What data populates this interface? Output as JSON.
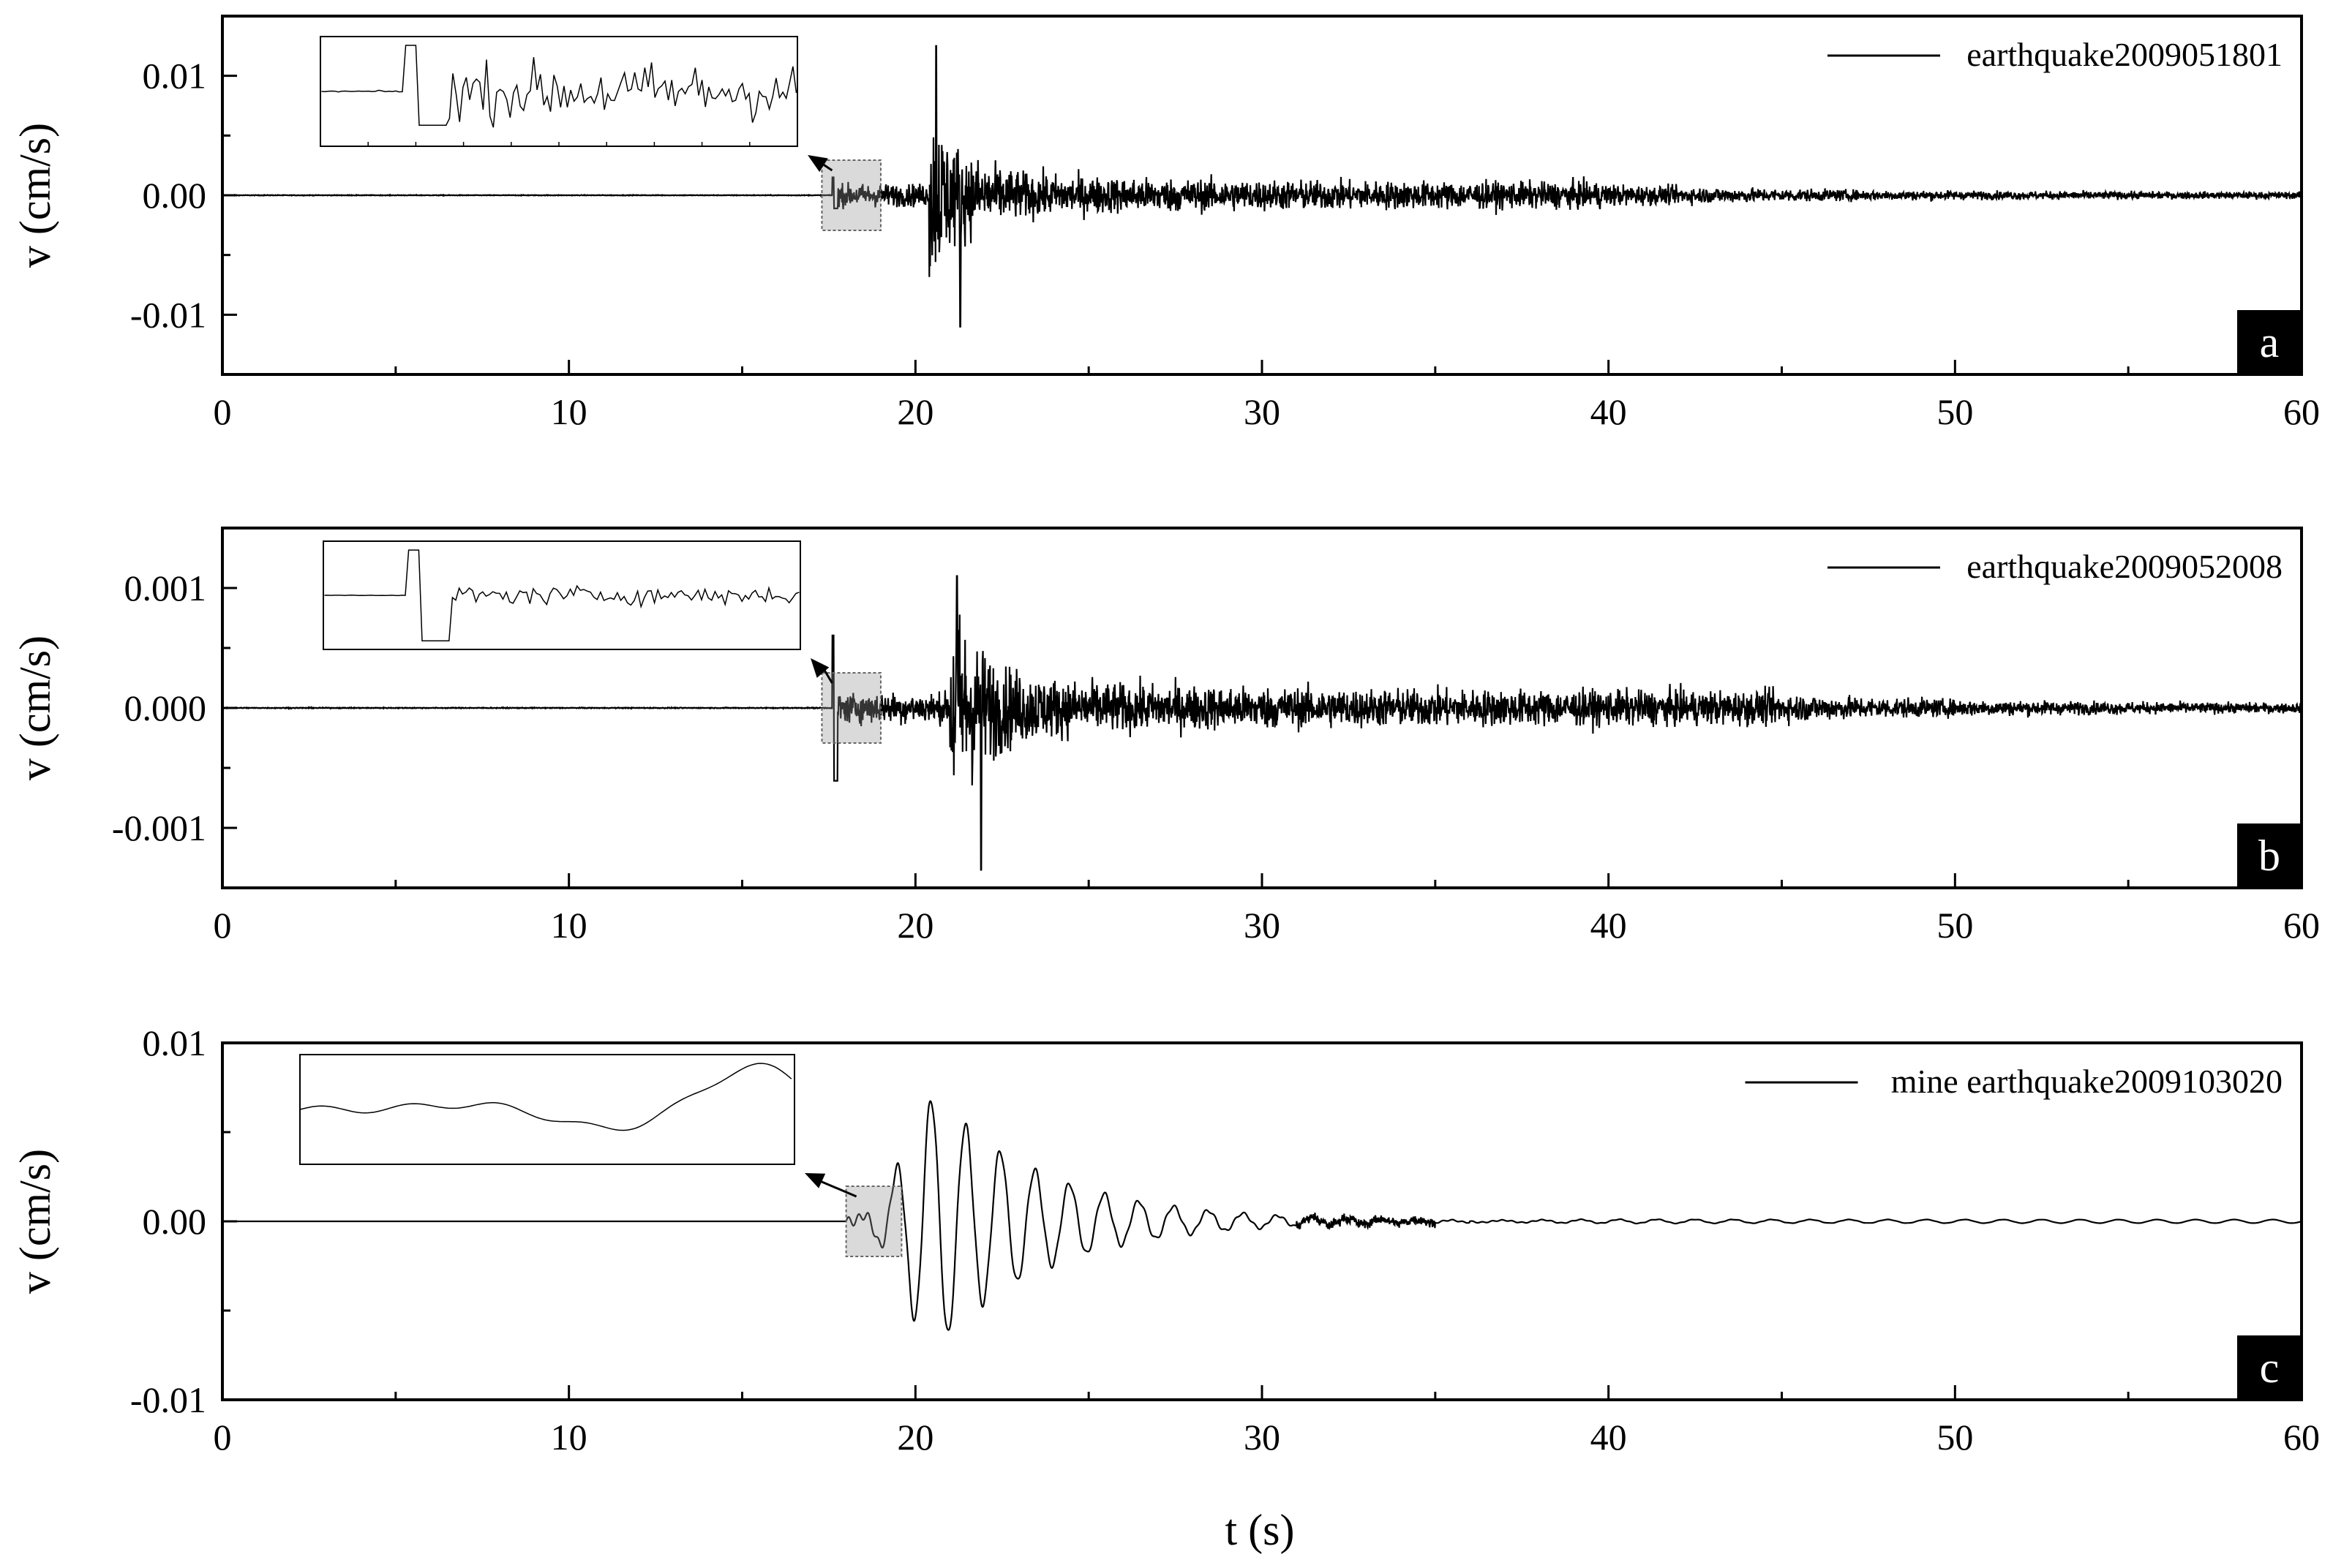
{
  "chart_data": [
    {
      "type": "line",
      "panel_label": "a",
      "legend": "earthquake2009051801",
      "xlabel": "t (s)",
      "ylabel": "v (cm/s)",
      "xlim": [
        0,
        60
      ],
      "ylim": [
        -0.015,
        0.015
      ],
      "x_ticks": [
        "0",
        "10",
        "20",
        "30",
        "40",
        "50",
        "60"
      ],
      "y_ticks": [
        {
          "value": 0.01,
          "label": "0.01"
        },
        {
          "value": 0.0,
          "label": "0.00"
        },
        {
          "value": -0.01,
          "label": "-0.01"
        }
      ],
      "series": [
        {
          "style": "seismic",
          "noise_onset_s": 17.6,
          "noise_amplitude": 0.0009,
          "p_arrival_s": 17.6,
          "s_arrival_s": 20.4,
          "peak_positive": 0.0125,
          "peak_negative": -0.011,
          "decay_end_s": 40
        }
      ],
      "inset": {
        "zoom_window_s": [
          17.3,
          19.0
        ],
        "shown": true
      }
    },
    {
      "type": "line",
      "panel_label": "b",
      "legend": "earthquake2009052008",
      "xlabel": "t (s)",
      "ylabel": "v (cm/s)",
      "xlim": [
        0,
        60
      ],
      "ylim": [
        -0.0015,
        0.0015
      ],
      "x_ticks": [
        "0",
        "10",
        "20",
        "30",
        "40",
        "50",
        "60"
      ],
      "y_ticks": [
        {
          "value": 0.001,
          "label": "0.001"
        },
        {
          "value": 0.0,
          "label": "0.000"
        },
        {
          "value": -0.001,
          "label": "-0.001"
        }
      ],
      "series": [
        {
          "style": "seismic",
          "noise_onset_s": 17.6,
          "noise_amplitude": 0.00012,
          "p_arrival_s": 17.6,
          "s_arrival_s": 21.0,
          "peak_positive": 0.0011,
          "peak_negative": -0.00135,
          "decay_end_s": 45
        }
      ],
      "inset": {
        "zoom_window_s": [
          17.3,
          19.0
        ],
        "shown": true
      }
    },
    {
      "type": "line",
      "panel_label": "c",
      "legend": "mine earthquake2009103020",
      "xlabel": "t (s)",
      "ylabel": "v (cm/s)",
      "xlim": [
        0,
        60
      ],
      "ylim": [
        -0.01,
        0.01
      ],
      "x_ticks": [
        "0",
        "10",
        "20",
        "30",
        "40",
        "50",
        "60"
      ],
      "y_ticks": [
        {
          "value": 0.01,
          "label": "0.01"
        },
        {
          "value": 0.0,
          "label": "0.00"
        },
        {
          "value": -0.01,
          "label": "-0.01"
        }
      ],
      "series": [
        {
          "style": "oscillatory",
          "onset_s": 18.0,
          "main_peak_s": 20.7,
          "peak_positive": 0.0064,
          "peak_negative": -0.0067,
          "decay_end_s": 36
        }
      ],
      "inset": {
        "zoom_window_s": [
          18.0,
          19.6
        ],
        "shown": true
      }
    }
  ]
}
